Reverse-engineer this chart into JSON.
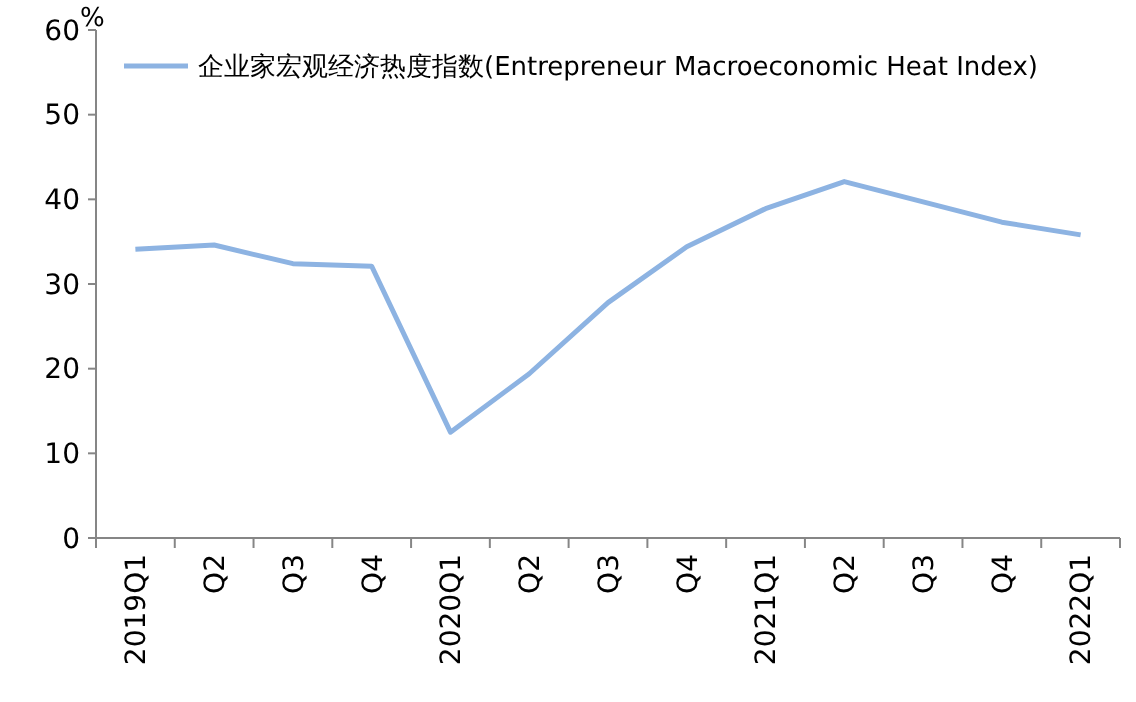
{
  "chart_data": {
    "type": "line",
    "ylabel": "%",
    "categories": [
      "2019Q1",
      "Q2",
      "Q3",
      "Q4",
      "2020Q1",
      "Q2",
      "Q3",
      "Q4",
      "2021Q1",
      "Q2",
      "Q3",
      "Q4",
      "2022Q1"
    ],
    "series": [
      {
        "name": "企业家宏观经济热度指数(Entrepreneur  Macroeconomic Heat Index)",
        "color": "#8db3e2",
        "values": [
          34.1,
          34.6,
          32.4,
          32.1,
          12.5,
          19.4,
          27.8,
          34.4,
          38.9,
          42.1,
          39.7,
          37.3,
          35.8
        ]
      }
    ],
    "ylim": [
      0,
      60
    ],
    "yticks": [
      0,
      10,
      20,
      30,
      40,
      50,
      60
    ],
    "grid": false,
    "legend": "top left",
    "marker": "none",
    "line_style": "solid"
  }
}
